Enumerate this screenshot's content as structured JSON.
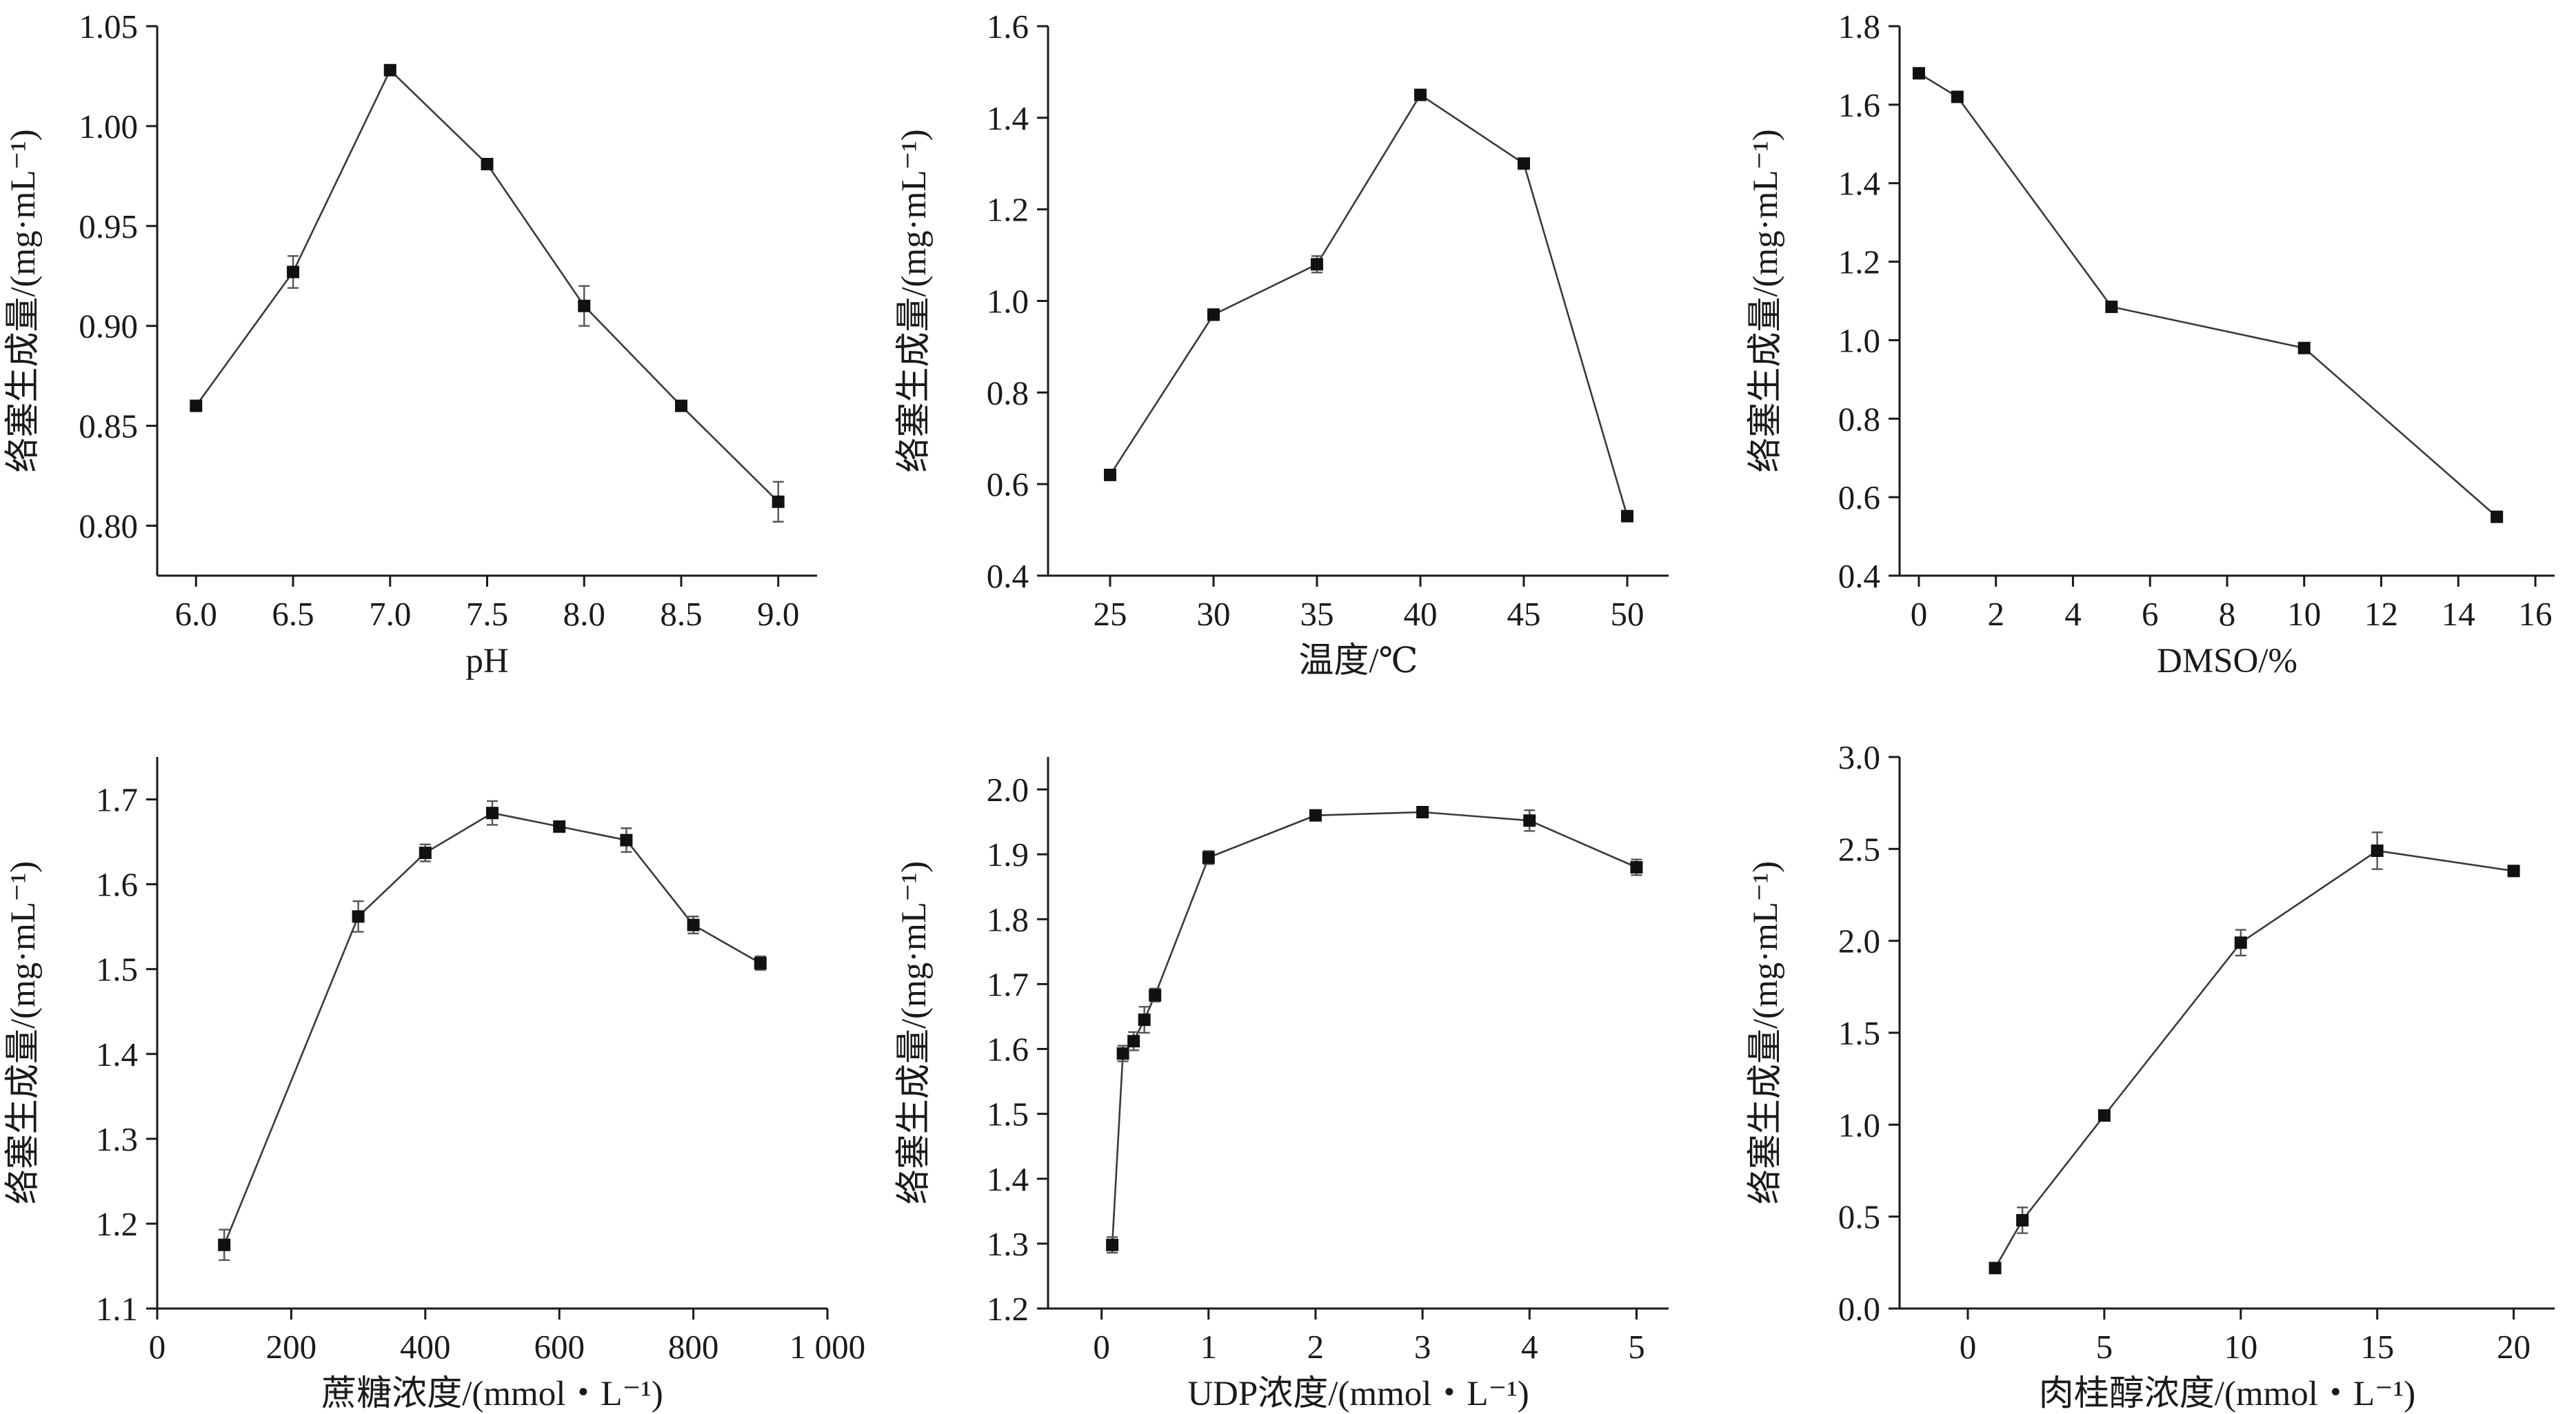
{
  "chart_data": [
    {
      "type": "line",
      "xlabel": "pH",
      "ylabel": "络塞生成量/(mg·mL⁻¹)",
      "xlim": [
        5.8,
        9.2
      ],
      "ylim": [
        0.775,
        1.05
      ],
      "xticks": [
        "6.0",
        "6.5",
        "7.0",
        "7.5",
        "8.0",
        "8.5",
        "9.0"
      ],
      "yticks": [
        "0.80",
        "0.85",
        "0.90",
        "0.95",
        "1.00",
        "1.05"
      ],
      "series": [
        {
          "x": [
            6.0,
            6.5,
            7.0,
            7.5,
            8.0,
            8.5,
            9.0
          ],
          "y": [
            0.86,
            0.927,
            1.028,
            0.981,
            0.91,
            0.86,
            0.812
          ],
          "error": [
            0.002,
            0.008,
            0.002,
            0.002,
            0.01,
            0.002,
            0.01
          ]
        }
      ]
    },
    {
      "type": "line",
      "xlabel": "温度/℃",
      "ylabel": "络塞生成量/(mg·mL⁻¹)",
      "xlim": [
        22,
        52
      ],
      "ylim": [
        0.4,
        1.6
      ],
      "xticks": [
        "25",
        "30",
        "35",
        "40",
        "45",
        "50"
      ],
      "yticks": [
        "0.4",
        "0.6",
        "0.8",
        "1.0",
        "1.2",
        "1.4",
        "1.6"
      ],
      "series": [
        {
          "x": [
            25,
            30,
            35,
            40,
            45,
            50
          ],
          "y": [
            0.62,
            0.97,
            1.08,
            1.45,
            1.3,
            0.53
          ],
          "error": [
            0.008,
            0.012,
            0.018,
            0.008,
            0.008,
            0.008
          ]
        }
      ]
    },
    {
      "type": "line",
      "xlabel": "DMSO/%",
      "ylabel": "络塞生成量/(mg·mL⁻¹)",
      "xlim": [
        -0.5,
        16.5
      ],
      "ylim": [
        0.4,
        1.8
      ],
      "xticks": [
        "0",
        "2",
        "4",
        "6",
        "8",
        "10",
        "12",
        "14",
        "16"
      ],
      "yticks": [
        "0.4",
        "0.6",
        "0.8",
        "1.0",
        "1.2",
        "1.4",
        "1.6",
        "1.8"
      ],
      "series": [
        {
          "x": [
            0,
            1,
            5,
            10,
            15
          ],
          "y": [
            1.68,
            1.62,
            1.085,
            0.98,
            0.55
          ],
          "error": [
            0.008,
            0.01,
            0.008,
            0.008,
            0.008
          ]
        }
      ]
    },
    {
      "type": "line",
      "xlabel": "蔗糖浓度/(mmol・L⁻¹)",
      "ylabel": "络塞生成量/(mg·mL⁻¹)",
      "xlim": [
        0,
        1000
      ],
      "ylim": [
        1.1,
        1.75
      ],
      "xticks": [
        "0",
        "200",
        "400",
        "600",
        "800",
        "1 000"
      ],
      "yticks": [
        "1.1",
        "1.2",
        "1.3",
        "1.4",
        "1.5",
        "1.6",
        "1.7"
      ],
      "series": [
        {
          "x": [
            100,
            300,
            400,
            500,
            600,
            700,
            800,
            900
          ],
          "y": [
            1.175,
            1.562,
            1.637,
            1.684,
            1.668,
            1.652,
            1.552,
            1.507
          ],
          "error": [
            0.018,
            0.018,
            0.01,
            0.014,
            0.004,
            0.014,
            0.01,
            0.008
          ]
        }
      ]
    },
    {
      "type": "line",
      "xlabel": "UDP浓度/(mmol・L⁻¹)",
      "ylabel": "络塞生成量/(mg·mL⁻¹)",
      "xlim": [
        -0.5,
        5.3
      ],
      "ylim": [
        1.2,
        2.05
      ],
      "xticks": [
        "0",
        "1",
        "2",
        "3",
        "4",
        "5"
      ],
      "yticks": [
        "1.2",
        "1.3",
        "1.4",
        "1.5",
        "1.6",
        "1.7",
        "1.8",
        "1.9",
        "2.0"
      ],
      "series": [
        {
          "x": [
            0.1,
            0.2,
            0.3,
            0.4,
            0.5,
            1,
            2,
            3,
            4,
            5
          ],
          "y": [
            1.298,
            1.593,
            1.612,
            1.645,
            1.683,
            1.895,
            1.96,
            1.965,
            1.952,
            1.88
          ],
          "error": [
            0.012,
            0.012,
            0.014,
            0.02,
            0.01,
            0.01,
            0.004,
            0.004,
            0.016,
            0.012
          ]
        }
      ]
    },
    {
      "type": "line",
      "xlabel": "肉桂醇浓度/(mmol・L⁻¹)",
      "ylabel": "络塞生成量/(mg·mL⁻¹)",
      "xlim": [
        -2.5,
        21.5
      ],
      "ylim": [
        0.0,
        3.0
      ],
      "xticks": [
        "0",
        "5",
        "10",
        "15",
        "20"
      ],
      "yticks": [
        "0.0",
        "0.5",
        "1.0",
        "1.5",
        "2.0",
        "2.5",
        "3.0"
      ],
      "series": [
        {
          "x": [
            1,
            2,
            5,
            10,
            15,
            20
          ],
          "y": [
            0.22,
            0.48,
            1.05,
            1.99,
            2.49,
            2.38
          ],
          "error": [
            0.02,
            0.07,
            0.02,
            0.07,
            0.1,
            0.02
          ]
        }
      ]
    }
  ]
}
